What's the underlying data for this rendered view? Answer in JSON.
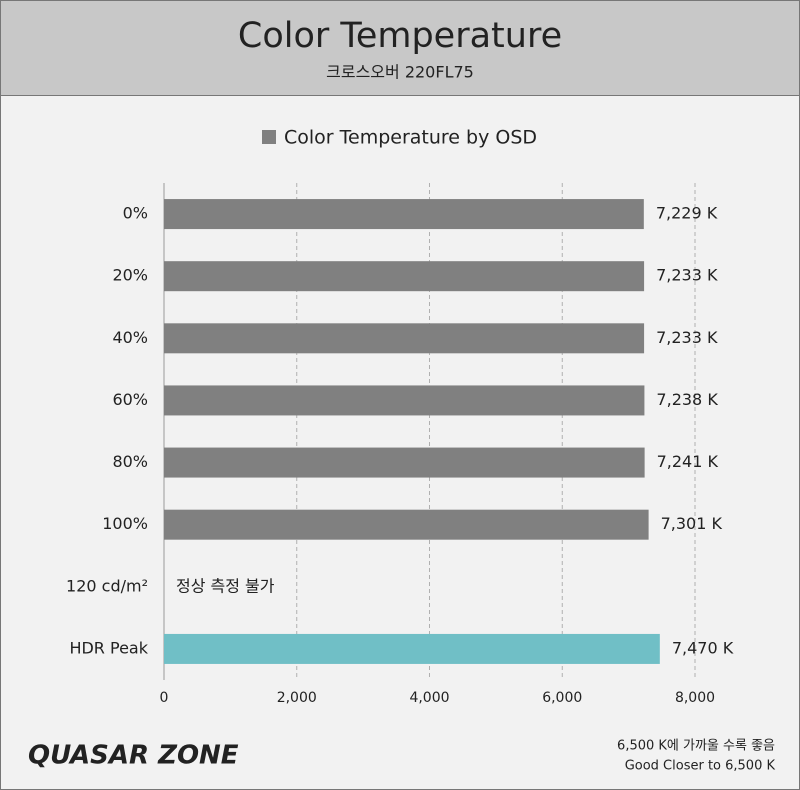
{
  "chart_data": {
    "type": "bar",
    "orientation": "horizontal",
    "title": "Color Temperature",
    "subtitle": "크로스오버 220FL75",
    "categories": [
      "0%",
      "20%",
      "40%",
      "60%",
      "80%",
      "100%",
      "120 cd/m²",
      "HDR Peak"
    ],
    "series": [
      {
        "name": "Color Temperature by OSD",
        "color": "#808080",
        "colors": [
          "#808080",
          "#808080",
          "#808080",
          "#808080",
          "#808080",
          "#808080",
          "#808080",
          "#70bfc6"
        ],
        "values": [
          7229,
          7233,
          7233,
          7238,
          7241,
          7301,
          null,
          7470
        ],
        "value_labels": [
          "7,229 K",
          "7,233 K",
          "7,233 K",
          "7,238 K",
          "7,241 K",
          "7,301 K",
          "정상 측정 불가",
          "7,470 K"
        ]
      }
    ],
    "xlim": [
      0,
      8000
    ],
    "xticks": [
      0,
      {
        "value": 2000,
        "label": "2,000"
      },
      {
        "value": 4000,
        "label": "4,000"
      },
      {
        "value": 6000,
        "label": "6,000"
      },
      {
        "value": 8000,
        "label": "8,000"
      }
    ],
    "grid": true,
    "legend": "top",
    "logo": "QUASAR ZONE",
    "notes": [
      "6,500 K에 가까울 수록 좋음",
      "Good Closer to 6,500 K"
    ]
  }
}
